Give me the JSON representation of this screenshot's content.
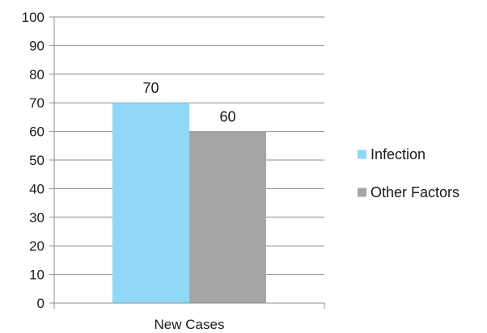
{
  "chart_data": {
    "type": "bar",
    "categories": [
      "New Cases"
    ],
    "series": [
      {
        "name": "Infection",
        "values": [
          70
        ],
        "color": "#8fd8f7"
      },
      {
        "name": "Other Factors",
        "values": [
          60
        ],
        "color": "#a6a6a8"
      }
    ],
    "title": "",
    "xlabel": "",
    "ylabel": "",
    "ylim": [
      0,
      100
    ],
    "yticks": [
      0,
      10,
      20,
      30,
      40,
      50,
      60,
      70,
      80,
      90,
      100
    ],
    "grid": true,
    "legend": "right",
    "data_labels": true,
    "gridline_color": "#8c8c8c"
  }
}
